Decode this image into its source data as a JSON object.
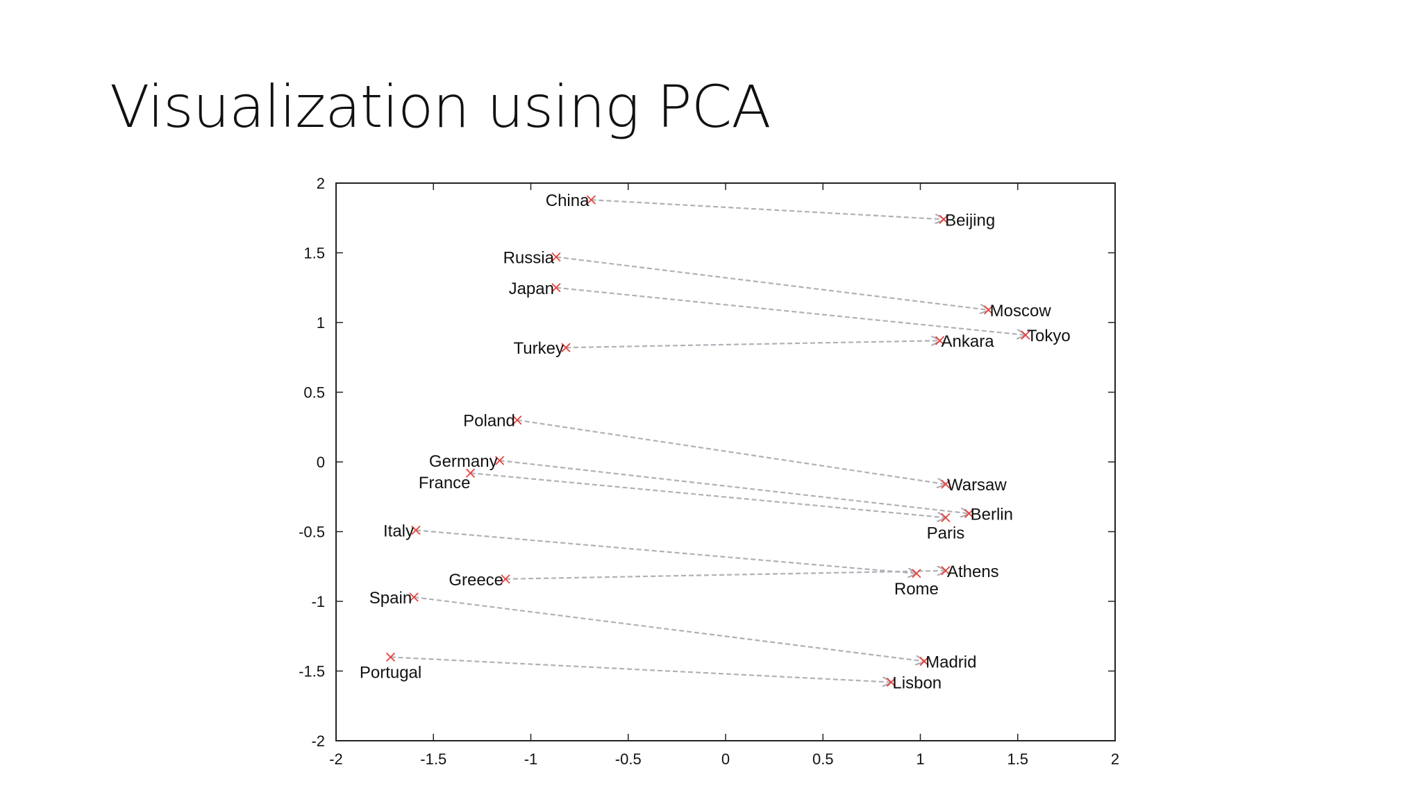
{
  "slide": {
    "title": "Visualization using PCA"
  },
  "chart_data": {
    "type": "scatter",
    "title": "",
    "xlabel": "",
    "ylabel": "",
    "xlim": [
      -2,
      2
    ],
    "ylim": [
      -2,
      2
    ],
    "xticks": [
      "-2",
      "-1.5",
      "-1",
      "-0.5",
      "0",
      "0.5",
      "1",
      "1.5",
      "2"
    ],
    "yticks": [
      "2",
      "1.5",
      "1",
      "0.5",
      "0",
      "-0.5",
      "-1",
      "-1.5",
      "-2"
    ],
    "grid": false,
    "marker_color": "#e8413c",
    "arrow_color": "#b0b0b8",
    "points": [
      {
        "label": "China",
        "x": -0.69,
        "y": 1.88,
        "anchor": "end"
      },
      {
        "label": "Russia",
        "x": -0.87,
        "y": 1.47,
        "anchor": "end"
      },
      {
        "label": "Japan",
        "x": -0.87,
        "y": 1.25,
        "anchor": "end"
      },
      {
        "label": "Turkey",
        "x": -0.82,
        "y": 0.82,
        "anchor": "end"
      },
      {
        "label": "Poland",
        "x": -1.07,
        "y": 0.3,
        "anchor": "end"
      },
      {
        "label": "Germany",
        "x": -1.16,
        "y": 0.01,
        "anchor": "end"
      },
      {
        "label": "France",
        "x": -1.31,
        "y": -0.08,
        "anchor": "below-end"
      },
      {
        "label": "Italy",
        "x": -1.59,
        "y": -0.49,
        "anchor": "end"
      },
      {
        "label": "Greece",
        "x": -1.13,
        "y": -0.84,
        "anchor": "end"
      },
      {
        "label": "Spain",
        "x": -1.6,
        "y": -0.97,
        "anchor": "end"
      },
      {
        "label": "Portugal",
        "x": -1.72,
        "y": -1.4,
        "anchor": "below"
      },
      {
        "label": "Beijing",
        "x": 1.12,
        "y": 1.74,
        "anchor": "start"
      },
      {
        "label": "Moscow",
        "x": 1.35,
        "y": 1.09,
        "anchor": "start"
      },
      {
        "label": "Tokyo",
        "x": 1.54,
        "y": 0.91,
        "anchor": "start"
      },
      {
        "label": "Ankara",
        "x": 1.1,
        "y": 0.87,
        "anchor": "start"
      },
      {
        "label": "Warsaw",
        "x": 1.13,
        "y": -0.16,
        "anchor": "start"
      },
      {
        "label": "Berlin",
        "x": 1.25,
        "y": -0.37,
        "anchor": "start"
      },
      {
        "label": "Paris",
        "x": 1.13,
        "y": -0.4,
        "anchor": "below"
      },
      {
        "label": "Athens",
        "x": 1.13,
        "y": -0.78,
        "anchor": "start"
      },
      {
        "label": "Rome",
        "x": 0.98,
        "y": -0.8,
        "anchor": "below"
      },
      {
        "label": "Madrid",
        "x": 1.02,
        "y": -1.43,
        "anchor": "start"
      },
      {
        "label": "Lisbon",
        "x": 0.85,
        "y": -1.58,
        "anchor": "start"
      }
    ],
    "arrows": [
      {
        "from": "China",
        "to": "Beijing"
      },
      {
        "from": "Russia",
        "to": "Moscow"
      },
      {
        "from": "Japan",
        "to": "Tokyo"
      },
      {
        "from": "Turkey",
        "to": "Ankara"
      },
      {
        "from": "Poland",
        "to": "Warsaw"
      },
      {
        "from": "Germany",
        "to": "Berlin"
      },
      {
        "from": "France",
        "to": "Paris"
      },
      {
        "from": "Italy",
        "to": "Rome"
      },
      {
        "from": "Greece",
        "to": "Athens"
      },
      {
        "from": "Spain",
        "to": "Madrid"
      },
      {
        "from": "Portugal",
        "to": "Lisbon"
      }
    ]
  }
}
